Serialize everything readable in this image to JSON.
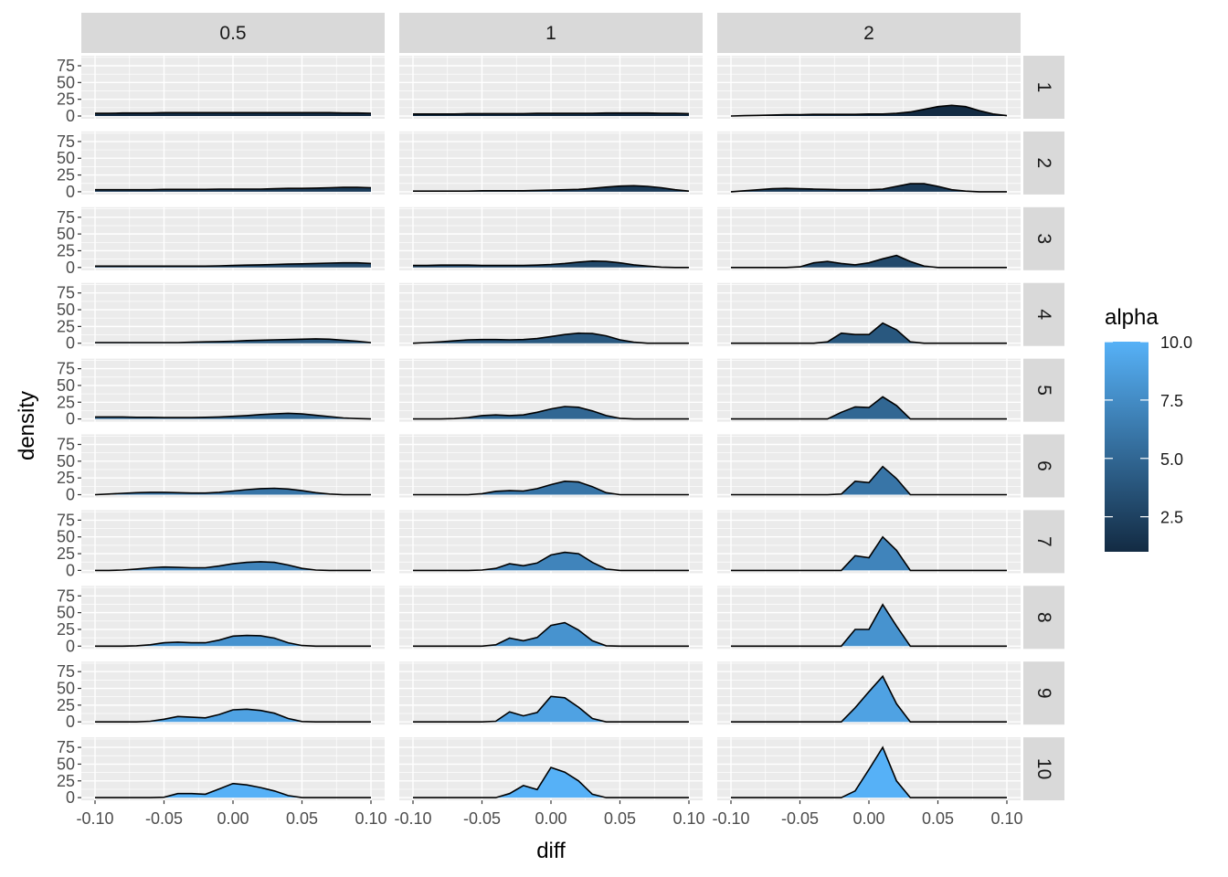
{
  "chart_data": {
    "type": "area",
    "subtype": "faceted density plot",
    "xlabel": "diff",
    "ylabel": "density",
    "xlim": [
      -0.1,
      0.1
    ],
    "ylim": [
      0,
      90
    ],
    "x_ticks": [
      -0.1,
      -0.05,
      0.0,
      0.05,
      0.1
    ],
    "x_tick_labels": [
      "-0.10",
      "-0.05",
      "0.00",
      "0.05",
      "0.10"
    ],
    "y_ticks": [
      0,
      25,
      50,
      75
    ],
    "y_tick_labels": [
      "0",
      "25",
      "50",
      "75"
    ],
    "grid": true,
    "col_facets": [
      "0.5",
      "1",
      "2"
    ],
    "row_facets": [
      "1",
      "2",
      "3",
      "4",
      "5",
      "6",
      "7",
      "8",
      "9",
      "10"
    ],
    "legend": {
      "title": "alpha",
      "position": "right",
      "type": "colorbar",
      "min": 1,
      "max": 10,
      "breaks": [
        2.5,
        5.0,
        7.5,
        10.0
      ],
      "break_labels": [
        "2.5",
        "5.0",
        "7.5",
        "10.0"
      ],
      "color_low": "#132B43",
      "color_high": "#56B1F7"
    },
    "fill_by_row": [
      1,
      2,
      3,
      4,
      5,
      6,
      7,
      8,
      9,
      10
    ],
    "x_grid": [
      -0.1,
      -0.09,
      -0.08,
      -0.07,
      -0.06,
      -0.05,
      -0.04,
      -0.03,
      -0.02,
      -0.01,
      0.0,
      0.01,
      0.02,
      0.03,
      0.04,
      0.05,
      0.06,
      0.07,
      0.08,
      0.09,
      0.1
    ],
    "panels": [
      [
        {
          "density": [
            4,
            4,
            4.5,
            4.5,
            4.5,
            5,
            5,
            5,
            5,
            5,
            5,
            5,
            5,
            5,
            5,
            5,
            5,
            5,
            4.5,
            4.5,
            4
          ]
        },
        {
          "density": [
            3,
            3,
            3,
            3,
            3,
            3.5,
            3.5,
            3.5,
            3.5,
            4,
            4,
            4,
            4,
            4.5,
            5,
            5,
            5.5,
            6,
            6.5,
            6.5,
            6
          ]
        },
        {
          "density": [
            2,
            2,
            2,
            2,
            2,
            2,
            2,
            2,
            2,
            2.5,
            3,
            3.5,
            4,
            4.5,
            5,
            5.5,
            6,
            6.5,
            7,
            7,
            6
          ]
        },
        {
          "density": [
            1,
            1,
            1,
            1,
            1,
            1,
            1,
            1.5,
            2,
            2.5,
            3,
            4,
            4.5,
            5,
            5.5,
            6,
            6.5,
            6,
            4.5,
            3,
            1
          ]
        },
        {
          "density": [
            3,
            3,
            3,
            2.5,
            2.5,
            2,
            2,
            2,
            2.5,
            3,
            4,
            5,
            6.5,
            7.5,
            8.5,
            7.5,
            5.5,
            3.5,
            1.5,
            0.5,
            0
          ]
        },
        {
          "density": [
            0,
            1,
            2,
            3,
            3.5,
            3.5,
            3,
            2.5,
            2.5,
            3.5,
            5.5,
            7.5,
            9,
            9.5,
            8.5,
            6,
            3,
            1,
            0,
            0,
            0
          ]
        },
        {
          "density": [
            0,
            0,
            0.5,
            2,
            4,
            5,
            4.5,
            4,
            4,
            6.5,
            10,
            12,
            13,
            12,
            8,
            3,
            0.5,
            0,
            0,
            0,
            0
          ]
        },
        {
          "density": [
            0,
            0,
            0,
            0.5,
            2,
            5,
            6,
            5,
            5,
            9,
            15,
            16,
            15.5,
            12,
            5,
            1,
            0,
            0,
            0,
            0,
            0
          ]
        },
        {
          "density": [
            0,
            0,
            0,
            0,
            1,
            4,
            8,
            7,
            6,
            11,
            18,
            19,
            17,
            13,
            5,
            0.5,
            0,
            0,
            0,
            0,
            0
          ]
        },
        {
          "density": [
            0,
            0,
            0,
            0,
            0,
            0.5,
            6,
            6,
            5,
            13,
            21,
            19,
            15,
            10,
            3,
            0,
            0,
            0,
            0,
            0,
            0
          ]
        }
      ],
      [
        {
          "density": [
            3,
            3,
            3,
            3,
            3.5,
            3.5,
            3.5,
            3.5,
            3.5,
            4,
            4,
            4,
            4,
            4,
            4.5,
            4.5,
            4.5,
            4.5,
            4,
            4,
            3.5
          ]
        },
        {
          "density": [
            1,
            1,
            1,
            1,
            1,
            1.5,
            1.5,
            1.5,
            1.5,
            2,
            2.5,
            3,
            3.5,
            5,
            7,
            8.5,
            9,
            8,
            6,
            3,
            1
          ]
        },
        {
          "density": [
            3,
            3,
            3.5,
            3.5,
            3.5,
            3,
            3,
            3,
            3,
            3.5,
            4.5,
            6,
            8,
            9.5,
            9,
            7,
            4,
            2,
            0.5,
            0,
            0
          ]
        },
        {
          "density": [
            0,
            1,
            2,
            3.5,
            5,
            5.5,
            5.5,
            5,
            5.5,
            7,
            10,
            13,
            15,
            14.5,
            11,
            5,
            1.5,
            0,
            0,
            0,
            0
          ]
        },
        {
          "density": [
            0,
            0,
            0,
            0.5,
            2,
            5,
            6,
            5,
            6,
            10,
            15,
            18.5,
            17.5,
            12,
            5,
            1,
            0,
            0,
            0,
            0,
            0
          ]
        },
        {
          "density": [
            0,
            0,
            0,
            0,
            0,
            1.5,
            5,
            6,
            5.5,
            9,
            15,
            20,
            19,
            12,
            3,
            0,
            0,
            0,
            0,
            0,
            0
          ]
        },
        {
          "density": [
            0,
            0,
            0,
            0,
            0,
            0.5,
            3,
            10,
            7,
            11,
            23,
            27,
            25,
            12,
            2,
            0,
            0,
            0,
            0,
            0,
            0
          ]
        },
        {
          "density": [
            0,
            0,
            0,
            0,
            0,
            0,
            2,
            12,
            8,
            13,
            31,
            35,
            24,
            8,
            0.5,
            0,
            0,
            0,
            0,
            0,
            0
          ]
        },
        {
          "density": [
            0,
            0,
            0,
            0,
            0,
            0,
            1,
            15,
            9,
            14,
            38,
            36,
            22,
            5,
            0,
            0,
            0,
            0,
            0,
            0,
            0
          ]
        },
        {
          "density": [
            0,
            0,
            0,
            0,
            0,
            0,
            0,
            6,
            18,
            12,
            45,
            38,
            25,
            5,
            0,
            0,
            0,
            0,
            0,
            0,
            0
          ]
        }
      ],
      [
        {
          "density": [
            0,
            0.5,
            1,
            1.5,
            2,
            2,
            2.5,
            2.5,
            2.5,
            2.5,
            3,
            3,
            4,
            6,
            10,
            14,
            16,
            14,
            8,
            3,
            0.5
          ]
        },
        {
          "density": [
            0,
            1.5,
            3,
            4.5,
            5,
            4.5,
            4,
            3.5,
            3,
            3,
            3,
            4,
            8,
            12,
            12,
            8,
            3,
            1,
            0,
            0,
            0
          ]
        },
        {
          "density": [
            0,
            0,
            0,
            0,
            0,
            1,
            7,
            9,
            6,
            4,
            7,
            13,
            18,
            9,
            2,
            0,
            0,
            0,
            0,
            0,
            0
          ]
        },
        {
          "density": [
            0,
            0,
            0,
            0,
            0,
            0,
            0,
            2,
            15,
            13,
            13,
            30,
            20,
            2,
            0,
            0,
            0,
            0,
            0,
            0,
            0
          ]
        },
        {
          "density": [
            0,
            0,
            0,
            0,
            0,
            0,
            0,
            0,
            10,
            18,
            17,
            33,
            20,
            0,
            0,
            0,
            0,
            0,
            0,
            0,
            0
          ]
        },
        {
          "density": [
            0,
            0,
            0,
            0,
            0,
            0,
            0,
            0,
            1,
            20,
            18,
            42,
            24,
            0,
            0,
            0,
            0,
            0,
            0,
            0,
            0
          ]
        },
        {
          "density": [
            0,
            0,
            0,
            0,
            0,
            0,
            0,
            0,
            0,
            22,
            19,
            50,
            30,
            0,
            0,
            0,
            0,
            0,
            0,
            0,
            0
          ]
        },
        {
          "density": [
            0,
            0,
            0,
            0,
            0,
            0,
            0,
            0,
            0,
            25,
            25,
            62,
            30,
            0,
            0,
            0,
            0,
            0,
            0,
            0,
            0
          ]
        },
        {
          "density": [
            0,
            0,
            0,
            0,
            0,
            0,
            0,
            0,
            0,
            21,
            45,
            68,
            27,
            0,
            0,
            0,
            0,
            0,
            0,
            0,
            0
          ]
        },
        {
          "density": [
            0,
            0,
            0,
            0,
            0,
            0,
            0,
            0,
            0,
            10,
            42,
            75,
            25,
            0,
            0,
            0,
            0,
            0,
            0,
            0,
            0
          ]
        }
      ]
    ]
  }
}
